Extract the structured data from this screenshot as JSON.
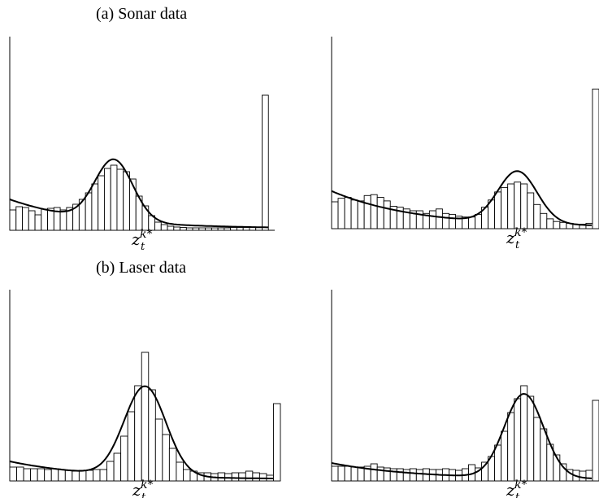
{
  "figure": {
    "sections": [
      {
        "label": "(a) Sonar data"
      },
      {
        "label": "(b) Laser data"
      }
    ]
  },
  "chart_data": [
    {
      "type": "bar",
      "panel": "(a) Sonar data, left",
      "xlabel": "z_t^{k*}",
      "bin_values": [
        0.25,
        0.29,
        0.28,
        0.24,
        0.19,
        0.26,
        0.27,
        0.28,
        0.25,
        0.28,
        0.32,
        0.38,
        0.46,
        0.57,
        0.67,
        0.76,
        0.8,
        0.75,
        0.72,
        0.63,
        0.42,
        0.3,
        0.18,
        0.1,
        0.07,
        0.05,
        0.04,
        0.035,
        0.03,
        0.03,
        0.03,
        0.03,
        0.03,
        0.03,
        0.03,
        0.035,
        0.035,
        0.035,
        0.04,
        0.035,
        1.66,
        0.0
      ],
      "fit_curve": {
        "baseline_start": 0.36,
        "peak_bin": 16,
        "peak_value": 0.75
      },
      "max_range_spike": 1.66
    },
    {
      "type": "bar",
      "panel": "(a) Sonar data, right",
      "xlabel": "z_t^{k*}",
      "bin_values": [
        0.3,
        0.34,
        0.35,
        0.32,
        0.31,
        0.37,
        0.38,
        0.35,
        0.31,
        0.25,
        0.24,
        0.22,
        0.2,
        0.2,
        0.17,
        0.2,
        0.22,
        0.17,
        0.16,
        0.14,
        0.13,
        0.13,
        0.16,
        0.24,
        0.32,
        0.41,
        0.46,
        0.5,
        0.52,
        0.5,
        0.4,
        0.27,
        0.17,
        0.11,
        0.08,
        0.07,
        0.06,
        0.05,
        0.05,
        0.06,
        1.56
      ],
      "fit_curve": {
        "baseline_start": 0.4,
        "peak_bin": 28,
        "peak_value": 0.58
      },
      "max_range_spike": 1.56
    },
    {
      "type": "bar",
      "panel": "(b) Laser data, left",
      "xlabel": "z_t^{k*}",
      "bin_values": [
        0.17,
        0.17,
        0.15,
        0.15,
        0.15,
        0.14,
        0.15,
        0.14,
        0.13,
        0.12,
        0.13,
        0.13,
        0.14,
        0.14,
        0.24,
        0.34,
        0.55,
        0.85,
        1.17,
        1.58,
        1.12,
        0.76,
        0.57,
        0.4,
        0.23,
        0.14,
        0.12,
        0.1,
        0.1,
        0.09,
        0.1,
        0.09,
        0.1,
        0.1,
        0.12,
        0.1,
        0.09,
        0.07,
        0.95
      ],
      "fit_curve": {
        "baseline_start": 0.22,
        "peak_bin": 19,
        "peak_value": 1.1
      },
      "max_range_spike": 0.95
    },
    {
      "type": "bar",
      "panel": "(b) Laser data, right",
      "xlabel": "z_t^{k*}",
      "bin_values": [
        0.18,
        0.18,
        0.18,
        0.17,
        0.17,
        0.18,
        0.21,
        0.17,
        0.16,
        0.15,
        0.15,
        0.14,
        0.15,
        0.14,
        0.15,
        0.14,
        0.14,
        0.15,
        0.14,
        0.13,
        0.15,
        0.2,
        0.16,
        0.23,
        0.3,
        0.44,
        0.61,
        0.84,
        1.01,
        1.17,
        1.04,
        0.78,
        0.64,
        0.45,
        0.32,
        0.21,
        0.14,
        0.13,
        0.12,
        0.13,
        0.99
      ],
      "fit_curve": {
        "baseline_start": 0.2,
        "peak_bin": 29,
        "peak_value": 1.03
      },
      "max_range_spike": 0.99
    }
  ]
}
